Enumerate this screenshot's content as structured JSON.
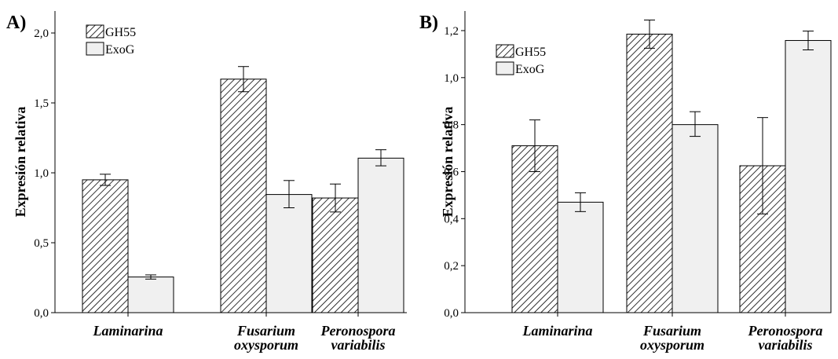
{
  "chart_data": [
    {
      "type": "bar",
      "panel_label": "A)",
      "ylabel": "Expresión relativa",
      "ylim": [
        0,
        2.0
      ],
      "yticks": [
        "0,0",
        "0,5",
        "1,0",
        "1,5",
        "2,0"
      ],
      "ytick_values": [
        0,
        0.5,
        1.0,
        1.5,
        2.0
      ],
      "categories": [
        [
          "Laminarina"
        ],
        [
          "Fusarium",
          "oxysporum"
        ],
        [
          "Peronospora",
          "variabilis"
        ]
      ],
      "legend_position": "top-left",
      "series": [
        {
          "name": "GH55",
          "values": [
            0.95,
            1.67,
            0.82
          ],
          "err_low": [
            0.91,
            1.58,
            0.72
          ],
          "err_high": [
            0.99,
            1.76,
            0.92
          ]
        },
        {
          "name": "ExoG",
          "values": [
            0.255,
            0.845,
            1.105
          ],
          "err_low": [
            0.24,
            0.75,
            1.05
          ],
          "err_high": [
            0.27,
            0.945,
            1.165
          ]
        }
      ]
    },
    {
      "type": "bar",
      "panel_label": "B)",
      "ylabel": "Expresión relativa",
      "ylim": [
        0,
        1.25
      ],
      "yticks": [
        "0,0",
        "0,2",
        "0,4",
        "0,6",
        "0,8",
        "1,0",
        "1,2"
      ],
      "ytick_values": [
        0,
        0.2,
        0.4,
        0.6,
        0.8,
        1.0,
        1.2
      ],
      "categories": [
        [
          "Laminarina"
        ],
        [
          "Fusarium",
          "oxysporum"
        ],
        [
          "Peronospora",
          "variabilis"
        ]
      ],
      "legend_position": "top-left",
      "series": [
        {
          "name": "GH55",
          "values": [
            0.71,
            1.185,
            0.625
          ],
          "err_low": [
            0.6,
            1.125,
            0.42
          ],
          "err_high": [
            0.82,
            1.245,
            0.83
          ]
        },
        {
          "name": "ExoG",
          "values": [
            0.47,
            0.8,
            1.158
          ],
          "err_low": [
            0.43,
            0.75,
            1.118
          ],
          "err_high": [
            0.51,
            0.855,
            1.198
          ]
        }
      ]
    }
  ],
  "colors": {
    "hatch_fill": "#ffffff",
    "hatch_line": "#000000",
    "exog_fill": "#f0f0f0",
    "axis": "#000000"
  }
}
